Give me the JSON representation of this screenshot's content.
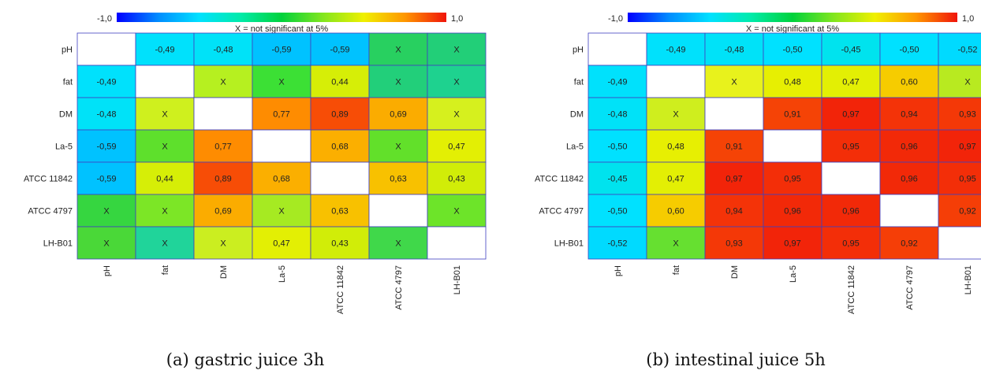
{
  "chart_data": [
    {
      "type": "heatmap",
      "caption": "(a) gastric juice 3h",
      "legend": {
        "min_label": "-1,0",
        "max_label": "1,0",
        "note": "X = not significant at 5%",
        "placement": "top"
      },
      "range": [
        -1,
        1
      ],
      "rows": [
        "pH",
        "fat",
        "DM",
        "La-5",
        "ATCC 11842",
        "ATCC 4797",
        "LH-B01"
      ],
      "columns": [
        "pH",
        "fat",
        "DM",
        "La-5",
        "ATCC 11842",
        "ATCC 4797",
        "LH-B01"
      ],
      "not_significant_label": "X",
      "values": [
        [
          null,
          -0.49,
          -0.48,
          -0.59,
          -0.59,
          "X",
          "X"
        ],
        [
          -0.49,
          null,
          "X",
          "X",
          0.44,
          "X",
          "X"
        ],
        [
          -0.48,
          "X",
          null,
          0.77,
          0.89,
          0.69,
          "X"
        ],
        [
          -0.59,
          "X",
          0.77,
          null,
          0.68,
          "X",
          0.47
        ],
        [
          -0.59,
          0.44,
          0.89,
          0.68,
          null,
          0.63,
          0.43
        ],
        [
          "X",
          "X",
          0.69,
          "X",
          0.63,
          null,
          "X"
        ],
        [
          "X",
          "X",
          "X",
          0.47,
          0.43,
          "X",
          null
        ]
      ],
      "nonsig_colors": [
        [
          null,
          null,
          null,
          null,
          null,
          "#28d060",
          "#22cf78"
        ],
        [
          null,
          null,
          "#b6f020",
          "#3ce035",
          null,
          "#22cf7a",
          "#1ed28f"
        ],
        [
          null,
          "#cff01e",
          null,
          null,
          null,
          null,
          "#d6f01e"
        ],
        [
          null,
          "#5ee02c",
          null,
          null,
          null,
          "#62e02a",
          null
        ],
        [
          null,
          null,
          null,
          null,
          null,
          null,
          null
        ],
        [
          "#36d640",
          "#7ce626",
          null,
          "#a6ea22",
          null,
          null,
          "#6de429"
        ],
        [
          "#4ad838",
          "#20d49a",
          "#cbee20",
          null,
          null,
          "#40d84a",
          null
        ]
      ]
    },
    {
      "type": "heatmap",
      "caption": "(b) intestinal juice 5h",
      "legend": {
        "min_label": "-1,0",
        "max_label": "1,0",
        "note": "X = not significant at 5%",
        "placement": "top"
      },
      "range": [
        -1,
        1
      ],
      "rows": [
        "pH",
        "fat",
        "DM",
        "La-5",
        "ATCC 11842",
        "ATCC 4797",
        "LH-B01"
      ],
      "columns": [
        "pH",
        "fat",
        "DM",
        "La-5",
        "ATCC 11842",
        "ATCC 4797",
        "LH-B01"
      ],
      "not_significant_label": "X",
      "values": [
        [
          null,
          -0.49,
          -0.48,
          -0.5,
          -0.45,
          -0.5,
          -0.52
        ],
        [
          -0.49,
          null,
          "X",
          0.48,
          0.47,
          0.6,
          "X"
        ],
        [
          -0.48,
          "X",
          null,
          0.91,
          0.97,
          0.94,
          0.93
        ],
        [
          -0.5,
          0.48,
          0.91,
          null,
          0.95,
          0.96,
          0.97
        ],
        [
          -0.45,
          0.47,
          0.97,
          0.95,
          null,
          0.96,
          0.95
        ],
        [
          -0.5,
          0.6,
          0.94,
          0.96,
          0.96,
          null,
          0.92
        ],
        [
          -0.52,
          "X",
          0.93,
          0.97,
          0.95,
          0.92,
          null
        ]
      ],
      "nonsig_colors": [
        [
          null,
          null,
          null,
          null,
          null,
          null,
          null
        ],
        [
          null,
          null,
          "#e8f21c",
          null,
          null,
          null,
          "#b8ea20"
        ],
        [
          null,
          "#cfee1e",
          null,
          null,
          null,
          null,
          null
        ],
        [
          null,
          null,
          null,
          null,
          null,
          null,
          null
        ],
        [
          null,
          null,
          null,
          null,
          null,
          null,
          null
        ],
        [
          null,
          null,
          null,
          null,
          null,
          null,
          null
        ],
        [
          null,
          "#66e030",
          null,
          null,
          null,
          null,
          null
        ]
      ]
    }
  ]
}
